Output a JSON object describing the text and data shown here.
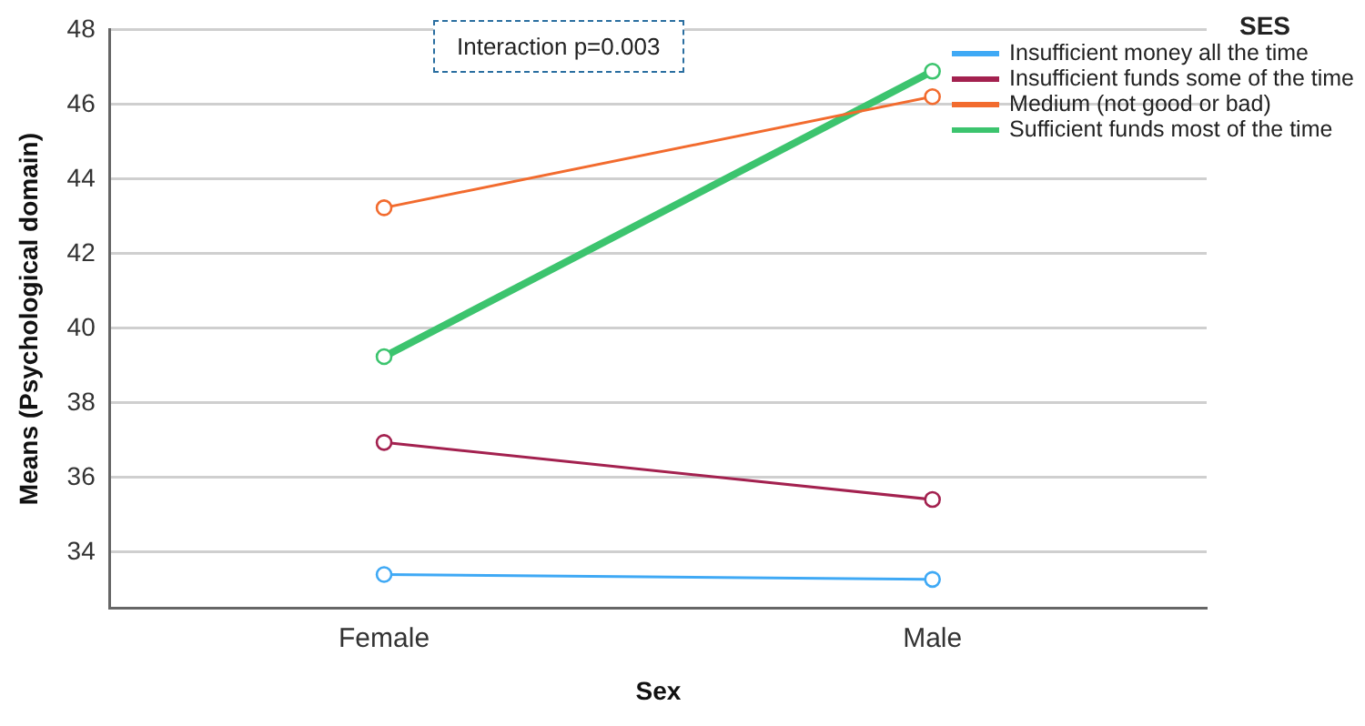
{
  "chart_data": {
    "type": "line",
    "xlabel": "Sex",
    "ylabel": "Means (Psychological domain)",
    "legend_title": "SES",
    "categories": [
      "Female",
      "Male"
    ],
    "series": [
      {
        "name": "Insufficient money all the time",
        "color": "#3fa9f5",
        "values": [
          33.4,
          33.27
        ]
      },
      {
        "name": "Insufficient funds some of the time",
        "color": "#a3214f",
        "values": [
          36.94,
          35.41
        ]
      },
      {
        "name": "Medium (not good or bad)",
        "color": "#f26b2e",
        "values": [
          43.23,
          46.21
        ]
      },
      {
        "name": "Sufficient funds most of the time",
        "color": "#3cc46e",
        "values": [
          39.24,
          46.89
        ]
      }
    ],
    "ylim": [
      32.5,
      48
    ],
    "yticks": [
      34,
      36,
      38,
      40,
      42,
      44,
      46,
      48
    ],
    "grid": "y",
    "legend": "top right",
    "marker": "circle",
    "line_style": "solid",
    "annotations": [
      "Interaction p=0.003"
    ]
  }
}
